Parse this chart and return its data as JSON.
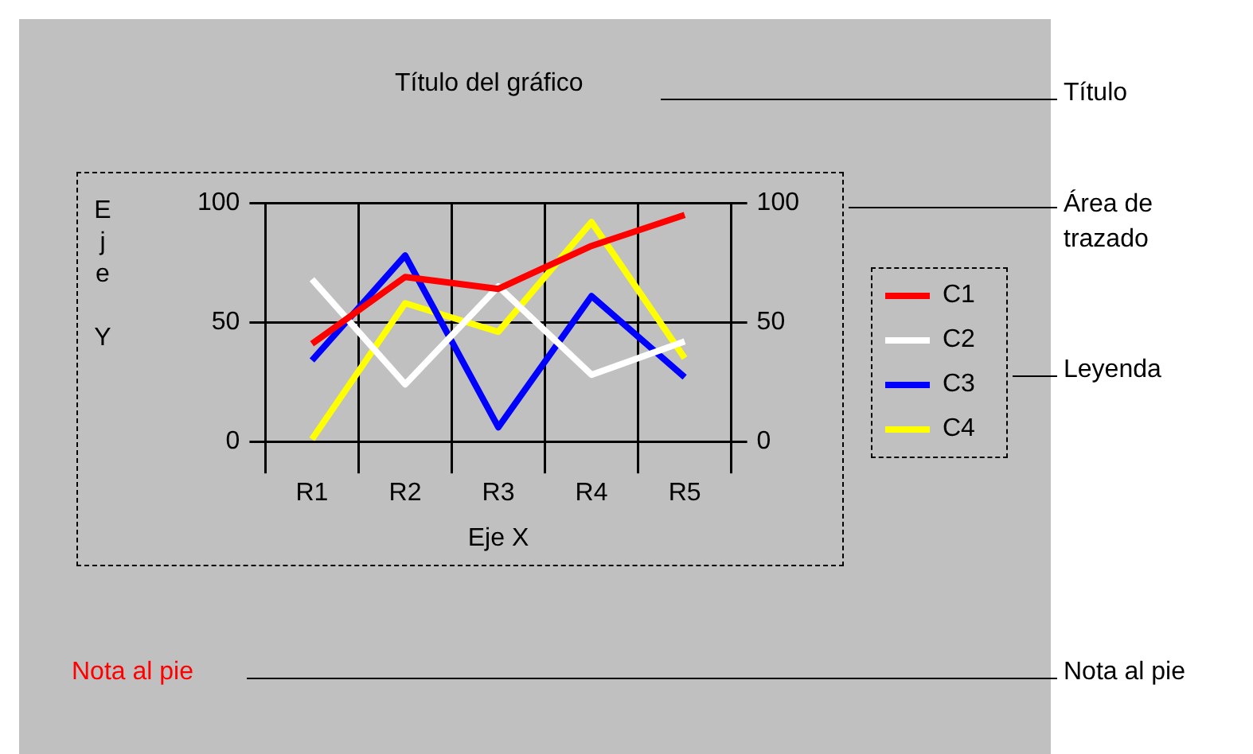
{
  "chart_data": {
    "type": "line",
    "title": "Título del gráfico",
    "xlabel": "Eje X",
    "ylabel": "Eje Y",
    "categories": [
      "R1",
      "R2",
      "R3",
      "R4",
      "R5"
    ],
    "series": [
      {
        "name": "C1",
        "color": "#ff0000",
        "values": [
          41,
          69,
          64,
          82,
          95
        ]
      },
      {
        "name": "C2",
        "color": "#ffffff",
        "values": [
          68,
          24,
          65,
          28,
          42
        ]
      },
      {
        "name": "C3",
        "color": "#0000ff",
        "values": [
          34,
          78,
          6,
          61,
          27
        ]
      },
      {
        "name": "C4",
        "color": "#ffff00",
        "values": [
          1,
          58,
          46,
          92,
          35
        ]
      }
    ],
    "ylim": [
      0,
      100
    ],
    "yticks": [
      0,
      50,
      100
    ],
    "y2lim": [
      0,
      100
    ],
    "y2ticks": [
      0,
      50,
      100
    ],
    "grid": true,
    "legend": "right",
    "marker": "none",
    "line_style": "solid",
    "annotations": [
      "Nota al pie",
      "Título",
      "Área de trazado",
      "Leyenda",
      "Nota al pie"
    ]
  }
}
